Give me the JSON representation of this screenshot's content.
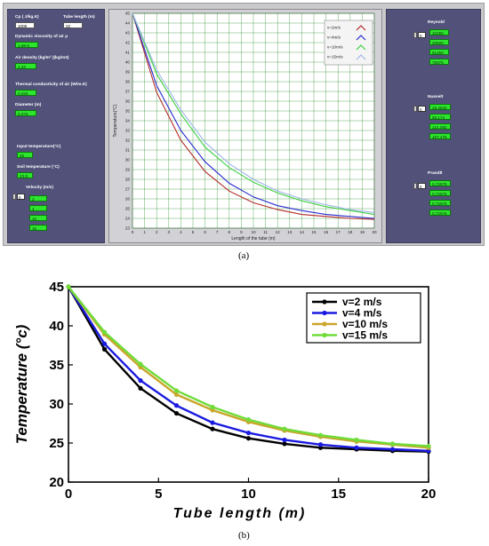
{
  "caption_a": "(a)",
  "caption_b": "(b)",
  "app": {
    "left_panel": {
      "cp_label": "Cp ( J/kg.K)",
      "cp_value": "1009",
      "tube_length_label": "Tube length (m)",
      "tube_length_value": "22",
      "viscosity_label": "Dynamic viscosity of air µ",
      "viscosity_value": "1,98-5",
      "density_label": "Air density (kg/m³ )(kg/m3)",
      "density_value": "1,23",
      "conductivity_label": "Thermal conductivity of air (W/m.K)",
      "conductivity_value": "0,025",
      "diameter_label": "Diameter (m)",
      "diameter_value": "0,075",
      "input_temp_label": "Input temperature(°C)",
      "input_temp_value": "45",
      "soil_temp_label": "Soil temperature (°C)",
      "soil_temp_value": "23,9",
      "velocity_label": "Velocity (m/s)",
      "velocity_index": "0",
      "velocities": [
        "2",
        "4",
        "10",
        "15"
      ]
    },
    "right_panel": {
      "reynold_label": "Reynold",
      "reynold_index": "0",
      "reynold_values": [
        "10250",
        "20500",
        "51250",
        "76875"
      ],
      "nusselt_label": "Nusselt",
      "nusselt_index": "0",
      "nusselt_values": [
        "33,4533",
        "58,174",
        "121,092",
        "167,476"
      ],
      "prandtl_label": "Prandlt",
      "prandtl_index": "0",
      "prandtl_values": [
        "0,72576",
        "0,72576",
        "0,72576",
        "0,72576"
      ]
    }
  },
  "chart_data": [
    {
      "type": "line",
      "ylabel": "Temperature(°C)",
      "xlabel": "Length of the tube (m)",
      "xlim": [
        0,
        20
      ],
      "ylim": [
        23,
        45
      ],
      "xticks": [
        0,
        1,
        2,
        3,
        4,
        5,
        6,
        7,
        8,
        9,
        10,
        11,
        12,
        13,
        14,
        15,
        16,
        17,
        18,
        19,
        20
      ],
      "yticks": [
        23,
        24,
        25,
        26,
        27,
        28,
        29,
        30,
        31,
        32,
        33,
        34,
        35,
        36,
        37,
        38,
        39,
        40,
        41,
        42,
        43,
        44,
        45
      ],
      "grid": true,
      "legend_position": "top-right",
      "x": [
        0,
        2,
        4,
        6,
        8,
        10,
        12,
        14,
        16,
        18,
        20
      ],
      "series": [
        {
          "name": "v=2m/s",
          "color": "#b52a2a",
          "values": [
            45,
            36.9,
            32.0,
            28.8,
            26.8,
            25.6,
            24.9,
            24.4,
            24.2,
            24.0,
            23.9
          ]
        },
        {
          "name": "v=4m/s",
          "color": "#2a2ad0",
          "values": [
            45,
            37.6,
            33.0,
            29.8,
            27.6,
            26.2,
            25.3,
            24.8,
            24.4,
            24.2,
            24.0
          ]
        },
        {
          "name": "v=10m/s",
          "color": "#3fcf3f",
          "values": [
            45,
            38.8,
            34.7,
            31.3,
            29.2,
            27.7,
            26.6,
            25.8,
            25.2,
            24.8,
            24.4
          ]
        },
        {
          "name": "v=15m/s",
          "color": "#9fb6e8",
          "values": [
            45,
            39.2,
            35.1,
            31.8,
            29.6,
            28.0,
            26.8,
            26.0,
            25.4,
            24.9,
            24.6
          ]
        }
      ]
    },
    {
      "type": "line",
      "ylabel": "Temperature (°c)",
      "xlabel": "Tube length (m)",
      "xlim": [
        0,
        20
      ],
      "ylim": [
        20,
        45
      ],
      "xticks": [
        0,
        5,
        10,
        15,
        20
      ],
      "yticks": [
        20,
        25,
        30,
        35,
        40,
        45
      ],
      "grid": false,
      "legend_position": "top-right",
      "x": [
        0,
        2,
        4,
        6,
        8,
        10,
        12,
        14,
        16,
        18,
        20
      ],
      "series": [
        {
          "name": "v=2 m/s",
          "color": "#000000",
          "values": [
            45,
            37.0,
            32.0,
            28.8,
            26.8,
            25.6,
            24.9,
            24.4,
            24.2,
            24.0,
            23.9
          ]
        },
        {
          "name": "v=4 m/s",
          "color": "#1a1ae0",
          "values": [
            45,
            37.7,
            33.0,
            29.8,
            27.6,
            26.3,
            25.4,
            24.8,
            24.4,
            24.2,
            24.0
          ]
        },
        {
          "name": "v=10 m/s",
          "color": "#c9a62a",
          "values": [
            45,
            38.9,
            34.7,
            31.2,
            29.2,
            27.7,
            26.6,
            25.8,
            25.2,
            24.8,
            24.4
          ]
        },
        {
          "name": "v=15 m/s",
          "color": "#6fdc3a",
          "values": [
            45,
            39.2,
            35.1,
            31.7,
            29.6,
            28.0,
            26.8,
            26.0,
            25.4,
            24.9,
            24.6
          ]
        }
      ]
    }
  ]
}
